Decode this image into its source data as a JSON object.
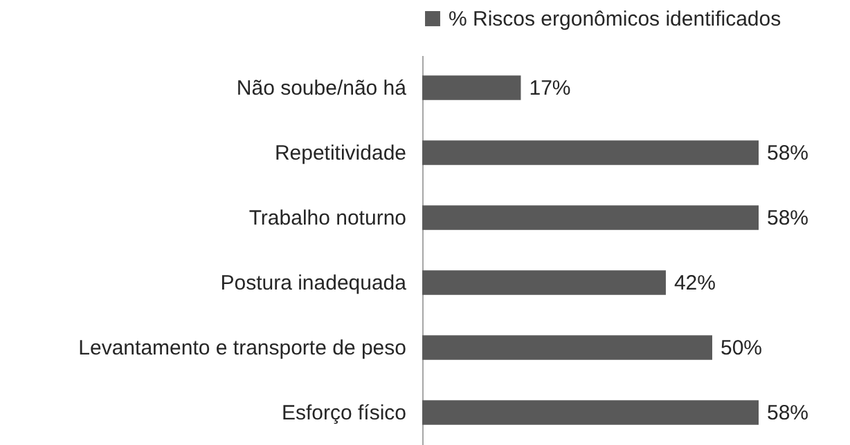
{
  "chart_data": {
    "type": "bar",
    "orientation": "horizontal",
    "categories": [
      "Não soube/não há",
      "Repetitividade",
      "Trabalho noturno",
      "Postura inadequada",
      "Levantamento e transporte de peso",
      "Esforço físico"
    ],
    "series": [
      {
        "name": "% Riscos ergonômicos identificados",
        "color": "#595959",
        "values": [
          17,
          58,
          58,
          42,
          50,
          58
        ],
        "value_labels": [
          "17%",
          "58%",
          "58%",
          "42%",
          "50%",
          "58%"
        ]
      }
    ],
    "legend": "top",
    "grid": false
  }
}
